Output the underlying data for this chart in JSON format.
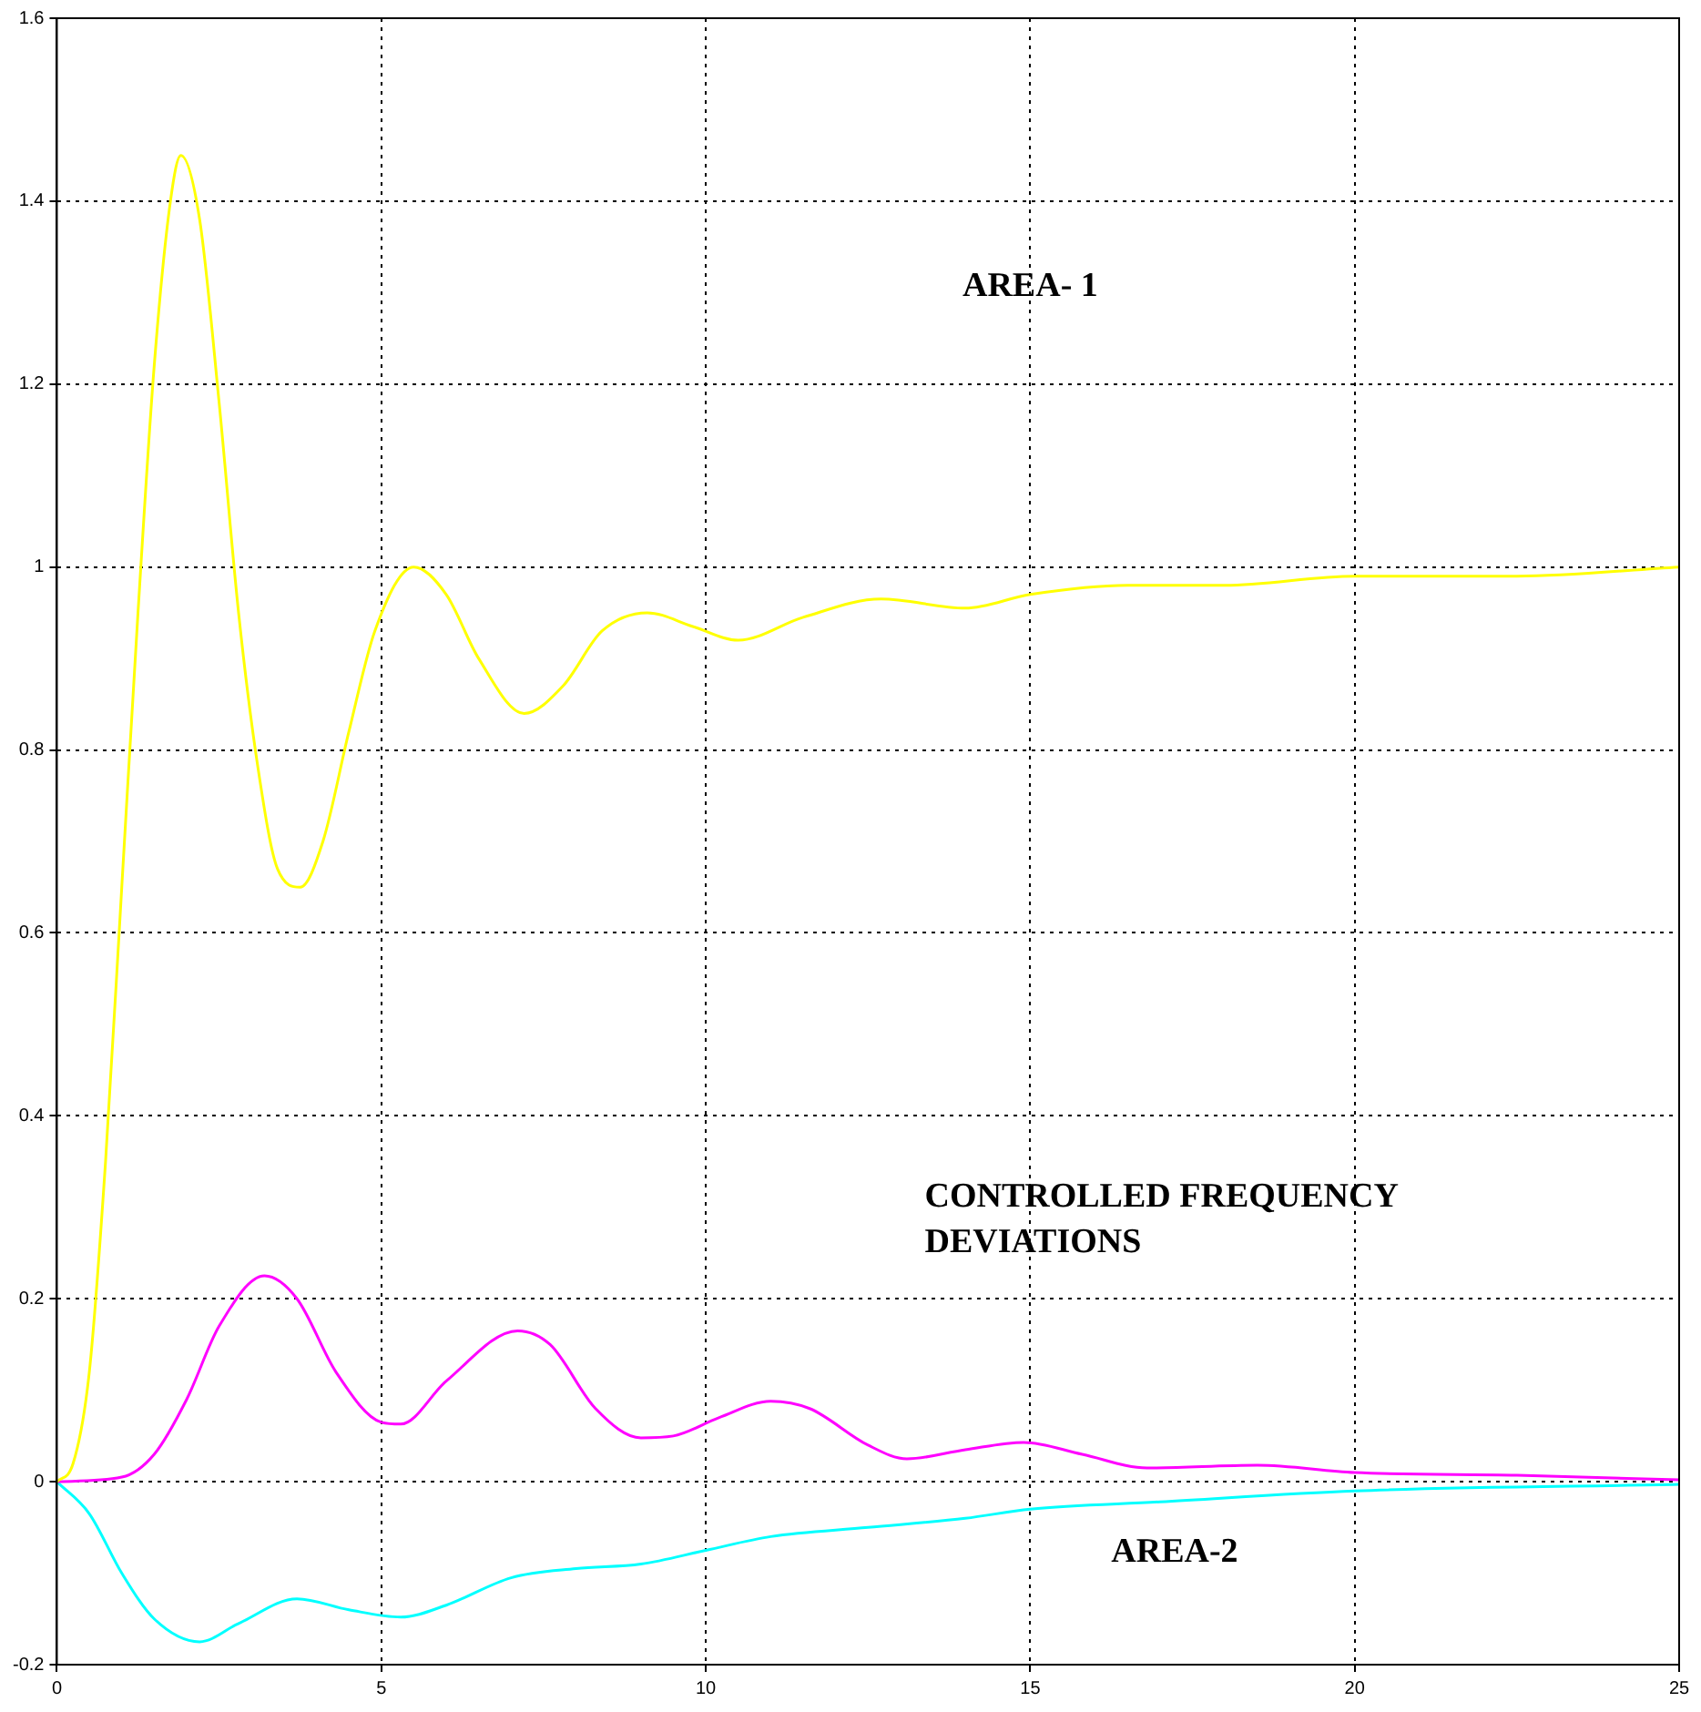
{
  "chart_data": {
    "type": "line",
    "x": [
      0,
      0.25,
      0.5,
      0.75,
      1,
      1.25,
      1.5,
      1.75,
      1.91,
      2.2,
      2.5,
      2.8,
      3.1,
      3.4,
      3.75,
      4.1,
      4.5,
      4.9,
      5.5,
      6,
      6.5,
      7.2,
      7.8,
      8.4,
      9.1,
      9.8,
      10.5,
      11.5,
      12.7,
      14,
      15,
      16.5,
      18,
      20,
      22.5,
      25
    ],
    "series": [
      {
        "color": "#ffff00",
        "values": [
          0,
          0.02,
          0.12,
          0.35,
          0.65,
          0.95,
          1.22,
          1.4,
          1.45,
          1.38,
          1.18,
          0.95,
          0.78,
          0.67,
          0.65,
          0.7,
          0.82,
          0.93,
          1.0,
          0.97,
          0.9,
          0.84,
          0.87,
          0.93,
          0.95,
          0.935,
          0.92,
          0.945,
          0.965,
          0.955,
          0.97,
          0.98,
          0.98,
          0.99,
          0.99,
          1.0
        ]
      },
      {
        "color": "#ff00ff",
        "x": [
          0,
          1,
          1.5,
          2,
          2.5,
          3.2,
          3.7,
          4.3,
          5,
          5.3,
          6,
          7.1,
          7.6,
          8.3,
          9,
          9.5,
          10.2,
          11,
          11.6,
          12.5,
          13.1,
          14,
          14.9,
          15.8,
          16.8,
          18.5,
          20,
          22.5,
          25
        ],
        "values": [
          0,
          0.005,
          0.03,
          0.09,
          0.17,
          0.225,
          0.2,
          0.12,
          0.065,
          0.063,
          0.11,
          0.165,
          0.15,
          0.08,
          0.048,
          0.05,
          0.07,
          0.088,
          0.08,
          0.04,
          0.025,
          0.035,
          0.043,
          0.03,
          0.015,
          0.018,
          0.01,
          0.007,
          0.002
        ]
      },
      {
        "color": "#00ffff",
        "x": [
          0,
          0.5,
          1,
          1.5,
          2.2,
          2.8,
          3.7,
          4.5,
          5.3,
          6,
          7,
          8,
          9,
          10,
          11,
          12.5,
          14,
          15,
          17,
          20,
          25
        ],
        "values": [
          0,
          -0.035,
          -0.1,
          -0.15,
          -0.175,
          -0.155,
          -0.128,
          -0.14,
          -0.148,
          -0.135,
          -0.105,
          -0.095,
          -0.09,
          -0.075,
          -0.06,
          -0.05,
          -0.04,
          -0.03,
          -0.022,
          -0.01,
          -0.003
        ]
      }
    ],
    "xlim": [
      0,
      25
    ],
    "xticks": [
      0,
      5,
      10,
      15,
      20,
      25
    ],
    "ylim": [
      -0.2,
      1.6
    ],
    "yticks": [
      -0.2,
      0,
      0.2,
      0.4,
      0.6,
      0.8,
      1,
      1.2,
      1.4,
      1.6
    ],
    "grid": true,
    "legend": false,
    "marker": "none",
    "annotations": [
      "AREA- 1",
      "CONTROLLED FREQUENCY\nDEVIATIONS",
      "AREA-2"
    ]
  }
}
